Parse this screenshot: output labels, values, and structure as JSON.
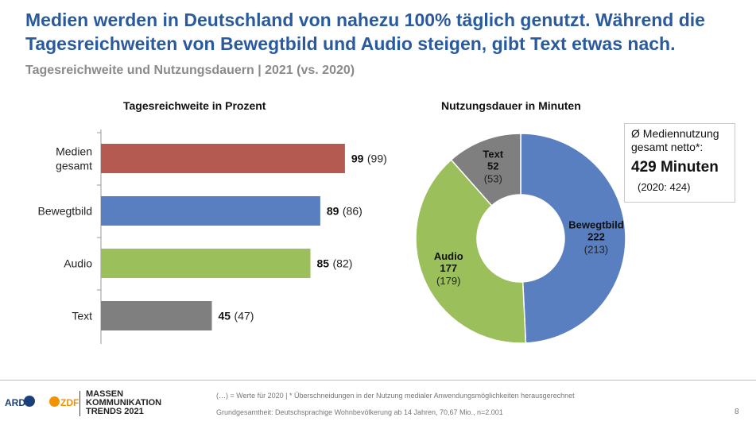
{
  "headline": "Medien werden in Deutschland von nahezu 100% täglich genutzt. Während die Tagesreichweiten von Bewegtbild und Audio steigen, gibt Text etwas nach.",
  "subtitle": "Tagesreichweite und Nutzungsdauern | 2021 (vs. 2020)",
  "chart_data": [
    {
      "type": "bar",
      "orientation": "horizontal",
      "title": "Tagesreichweite in Prozent",
      "categories": [
        "Medien gesamt",
        "Bewegtbild",
        "Audio",
        "Text"
      ],
      "category_lines": [
        [
          "Medien",
          "gesamt"
        ],
        [
          "Bewegtbild"
        ],
        [
          "Audio"
        ],
        [
          "Text"
        ]
      ],
      "values": [
        99,
        89,
        85,
        45
      ],
      "previous_values_label": [
        "(99)",
        "(86)",
        "(82)",
        "(47)"
      ],
      "previous_values": [
        99,
        86,
        82,
        47
      ],
      "colors": [
        "#b45a50",
        "#5a7fc0",
        "#9bbf5a",
        "#7f7f7f"
      ],
      "xlim": [
        0,
        100
      ]
    },
    {
      "type": "pie",
      "variant": "donut",
      "title": "Nutzungsdauer in Minuten",
      "categories": [
        "Bewegtbild",
        "Audio",
        "Text"
      ],
      "values": [
        222,
        177,
        52
      ],
      "previous_values": [
        213,
        179,
        53
      ],
      "previous_values_label": [
        "(213)",
        "(179)",
        "(53)"
      ],
      "colors": [
        "#5a7fc0",
        "#9bbf5a",
        "#7f7f7f"
      ]
    }
  ],
  "info_box": {
    "label_line1": "Ø Mediennutzung",
    "label_line2": "gesamt netto*:",
    "value": "429 Minuten",
    "previous": "(2020: 424)"
  },
  "footer": {
    "logo_ard": "ARD",
    "logo_zdf": "ZDF",
    "brand_lines": [
      "MASSEN",
      "KOMMUNIKATION",
      "TRENDS 2021"
    ],
    "note1": "(…) = Werte für 2020 | * Überschneidungen in der Nutzung medialer Anwendungsmöglichkeiten herausgerechnet",
    "note2": "Grundgesamtheit: Deutschsprachige Wohnbevölkerung ab 14 Jahren, 70,67 Mio., n=2.001",
    "page": "8"
  }
}
